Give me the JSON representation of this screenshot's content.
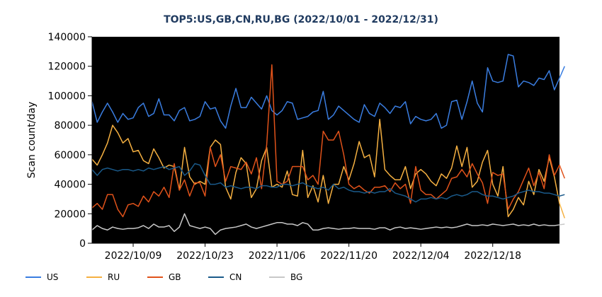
{
  "chart_data": {
    "type": "line",
    "title": "TOP5:US,GB,CN,RU,BG (2022/10/01 - 2022/12/31)",
    "ylabel": "Scan count/day",
    "xlabel": "",
    "ylim": [
      0,
      140000
    ],
    "yticks": [
      0,
      20000,
      40000,
      60000,
      80000,
      100000,
      120000,
      140000
    ],
    "xticks": [
      "2022/10/09",
      "2022/10/23",
      "2022/11/06",
      "2022/11/20",
      "2022/12/04",
      "2022/12/18"
    ],
    "x_start": "2022/10/01",
    "x_end": "2022/12/31",
    "grid": false,
    "background": "#000000",
    "legend_position": "bottom",
    "series": [
      {
        "name": "US",
        "color": "#3a7de0",
        "values": [
          96000,
          82000,
          89000,
          95000,
          89000,
          82000,
          88000,
          84000,
          85000,
          92000,
          95000,
          86000,
          88000,
          98000,
          87000,
          87000,
          83000,
          90000,
          92000,
          83000,
          84000,
          86000,
          96000,
          91000,
          92000,
          83000,
          78000,
          93000,
          105000,
          92000,
          92000,
          99000,
          95000,
          91000,
          100000,
          90000,
          87000,
          90000,
          96000,
          95000,
          84000,
          85000,
          86000,
          89000,
          90000,
          103000,
          84000,
          87000,
          93000,
          90000,
          87000,
          84000,
          82000,
          94000,
          88000,
          86000,
          95000,
          92000,
          88000,
          93000,
          92000,
          96000,
          81000,
          86000,
          84000,
          83000,
          84000,
          88000,
          78000,
          80000,
          96000,
          97000,
          84000,
          96000,
          110000,
          95000,
          89000,
          119000,
          110000,
          109000,
          110000,
          128000,
          127000,
          106000,
          110000,
          109000,
          107000,
          112000,
          111000,
          117000,
          104000,
          112000,
          120000
        ]
      },
      {
        "name": "RU",
        "color": "#f5b041",
        "values": [
          57000,
          53000,
          60000,
          68000,
          80000,
          75000,
          68000,
          71000,
          62000,
          63000,
          56000,
          54000,
          64000,
          58000,
          51000,
          53000,
          52000,
          36000,
          65000,
          45000,
          40000,
          42000,
          40000,
          65000,
          70000,
          67000,
          38000,
          30000,
          48000,
          58000,
          54000,
          31000,
          37000,
          56000,
          65000,
          38000,
          40000,
          38000,
          49000,
          33000,
          32000,
          63000,
          31000,
          39000,
          28000,
          46000,
          27000,
          40000,
          40000,
          52000,
          43000,
          54000,
          69000,
          58000,
          60000,
          45000,
          84000,
          50000,
          46000,
          43000,
          43000,
          52000,
          37000,
          47000,
          50000,
          47000,
          42000,
          39000,
          47000,
          44000,
          51000,
          66000,
          52000,
          65000,
          38000,
          42000,
          55000,
          63000,
          40000,
          32000,
          52000,
          18000,
          23000,
          31000,
          26000,
          42000,
          33000,
          50000,
          42000,
          58000,
          45000,
          27000,
          17000
        ]
      },
      {
        "name": "GB",
        "color": "#e0521a",
        "values": [
          24000,
          27000,
          23000,
          33000,
          33000,
          23000,
          18000,
          26000,
          27000,
          25000,
          32000,
          28000,
          35000,
          32000,
          38000,
          31000,
          54000,
          36000,
          43000,
          32000,
          41000,
          41000,
          32000,
          65000,
          52000,
          60000,
          42000,
          52000,
          51000,
          50000,
          55000,
          47000,
          58000,
          37000,
          67000,
          121000,
          42000,
          40000,
          42000,
          52000,
          52000,
          52000,
          43000,
          46000,
          40000,
          76000,
          70000,
          70000,
          76000,
          60000,
          40000,
          37000,
          39000,
          36000,
          34000,
          38000,
          38000,
          39000,
          35000,
          41000,
          37000,
          40000,
          27000,
          52000,
          36000,
          33000,
          33000,
          30000,
          33000,
          36000,
          44000,
          45000,
          50000,
          45000,
          54000,
          47000,
          41000,
          27000,
          48000,
          46000,
          47000,
          23000,
          30000,
          35000,
          43000,
          51000,
          39000,
          48000,
          37000,
          60000,
          46000,
          53000,
          44000
        ]
      },
      {
        "name": "CN",
        "color": "#1a5a8a",
        "values": [
          50000,
          46000,
          50000,
          51000,
          50000,
          49000,
          50000,
          50000,
          49000,
          50000,
          49000,
          51000,
          50000,
          51000,
          52000,
          50000,
          51000,
          52000,
          46000,
          49000,
          54000,
          53000,
          46000,
          40000,
          40000,
          41000,
          38000,
          39000,
          38000,
          37000,
          38000,
          38000,
          37000,
          39000,
          39000,
          38000,
          38000,
          40000,
          40000,
          39000,
          40000,
          41000,
          39000,
          38000,
          37000,
          38000,
          36000,
          40000,
          37000,
          38000,
          36000,
          35000,
          35000,
          34000,
          35000,
          34000,
          35000,
          35000,
          37000,
          34000,
          33000,
          32000,
          30000,
          28000,
          30000,
          30000,
          31000,
          30000,
          31000,
          30000,
          32000,
          33000,
          32000,
          33000,
          35000,
          35000,
          33000,
          32000,
          32000,
          31000,
          30000,
          31000,
          32000,
          34000,
          35000,
          36000,
          35000,
          35000,
          34000,
          34000,
          33000,
          32000,
          33000
        ]
      },
      {
        "name": "BG",
        "color": "#c8c8c8",
        "values": [
          9000,
          12000,
          10000,
          9000,
          11000,
          10000,
          9500,
          10000,
          10000,
          10500,
          12000,
          10000,
          13000,
          11000,
          11000,
          12000,
          8000,
          11000,
          20000,
          12000,
          11000,
          10000,
          11000,
          10000,
          6000,
          9000,
          10000,
          10500,
          11000,
          12000,
          13000,
          11000,
          10000,
          11000,
          12000,
          13000,
          14000,
          14000,
          13000,
          13000,
          12000,
          14000,
          13000,
          9000,
          9000,
          10000,
          10500,
          10000,
          9500,
          10000,
          10000,
          10500,
          10000,
          10000,
          10000,
          9500,
          10500,
          10500,
          9000,
          10500,
          11000,
          10000,
          10500,
          10000,
          9500,
          10000,
          10500,
          11000,
          10500,
          11000,
          10500,
          11000,
          12000,
          13000,
          12000,
          12000,
          12500,
          12000,
          13000,
          12500,
          12000,
          12500,
          13000,
          12000,
          12500,
          12000,
          13000,
          12000,
          12500,
          12000,
          12000,
          12500,
          13000
        ]
      }
    ]
  }
}
